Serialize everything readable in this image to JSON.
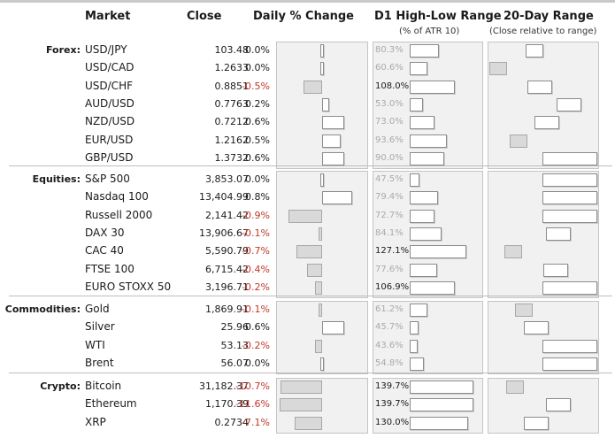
{
  "headers": {
    "market": "Market",
    "close": "Close",
    "daily_change": "Daily % Change",
    "d1_range": "D1 High-Low Range",
    "d1_range_sub": "(% of ATR 10)",
    "twenty_day": "20-Day Range",
    "twenty_day_sub": "(Close relative to range)"
  },
  "colors": {
    "negative": "#c0392b",
    "neutral": "#1a1a1a",
    "faded": "#aaaaaa",
    "positive_bar": "#ffffff",
    "negative_bar": "#d9d9d9"
  },
  "groups": [
    {
      "label": "Forex:",
      "rows": [
        {
          "name": "USD/JPY",
          "close": "103.48",
          "change": "0.0%",
          "change_value": 0.0,
          "atr": "80.3%",
          "atr_value": 80.3,
          "range_pos": 0.5
        },
        {
          "name": "USD/CAD",
          "close": "1.2633",
          "change": "0.0%",
          "change_value": 0.0,
          "atr": "60.6%",
          "atr_value": 60.6,
          "range_pos": 0.03
        },
        {
          "name": "USD/CHF",
          "close": "0.8851",
          "change": "-0.5%",
          "change_value": -0.5,
          "atr": "108.0%",
          "atr_value": 108.0,
          "range_pos": 0.58
        },
        {
          "name": "AUD/USD",
          "close": "0.7763",
          "change": "0.2%",
          "change_value": 0.2,
          "atr": "53.0%",
          "atr_value": 53.0,
          "range_pos": 0.85
        },
        {
          "name": "NZD/USD",
          "close": "0.7212",
          "change": "0.6%",
          "change_value": 0.6,
          "atr": "73.0%",
          "atr_value": 73.0,
          "range_pos": 0.65
        },
        {
          "name": "EUR/USD",
          "close": "1.2162",
          "change": "0.5%",
          "change_value": 0.5,
          "atr": "93.6%",
          "atr_value": 93.6,
          "range_pos": 0.35
        },
        {
          "name": "GBP/USD",
          "close": "1.3732",
          "change": "0.6%",
          "change_value": 0.6,
          "atr": "90.0%",
          "atr_value": 90.0,
          "range_pos": 1.0
        }
      ]
    },
    {
      "label": "Equities:",
      "rows": [
        {
          "name": "S&P 500",
          "close": "3,853.07",
          "change": "0.0%",
          "change_value": 0.0,
          "atr": "47.5%",
          "atr_value": 47.5,
          "range_pos": 1.0
        },
        {
          "name": "Nasdaq 100",
          "close": "13,404.99",
          "change": "0.8%",
          "change_value": 0.8,
          "atr": "79.4%",
          "atr_value": 79.4,
          "range_pos": 1.0
        },
        {
          "name": "Russell 2000",
          "close": "2,141.42",
          "change": "-0.9%",
          "change_value": -0.9,
          "atr": "72.7%",
          "atr_value": 72.7,
          "range_pos": 1.0
        },
        {
          "name": "DAX 30",
          "close": "13,906.67",
          "change": "-0.1%",
          "change_value": -0.1,
          "atr": "84.1%",
          "atr_value": 84.1,
          "range_pos": 0.75
        },
        {
          "name": "CAC 40",
          "close": "5,590.79",
          "change": "-0.7%",
          "change_value": -0.7,
          "atr": "127.1%",
          "atr_value": 127.1,
          "range_pos": 0.3
        },
        {
          "name": "FTSE 100",
          "close": "6,715.42",
          "change": "-0.4%",
          "change_value": -0.4,
          "atr": "77.6%",
          "atr_value": 77.6,
          "range_pos": 0.73
        },
        {
          "name": "EURO STOXX 50",
          "close": "3,196.71",
          "change": "-0.2%",
          "change_value": -0.2,
          "atr": "106.9%",
          "atr_value": 106.9,
          "range_pos": 1.0
        }
      ]
    },
    {
      "label": "Commodities:",
      "rows": [
        {
          "name": "Gold",
          "close": "1,869.91",
          "change": "-0.1%",
          "change_value": -0.1,
          "atr": "61.2%",
          "atr_value": 61.2,
          "range_pos": 0.4
        },
        {
          "name": "Silver",
          "close": "25.96",
          "change": "0.6%",
          "change_value": 0.6,
          "atr": "45.7%",
          "atr_value": 45.7,
          "range_pos": 0.55
        },
        {
          "name": "WTI",
          "close": "53.13",
          "change": "-0.2%",
          "change_value": -0.2,
          "atr": "43.6%",
          "atr_value": 43.6,
          "range_pos": 1.0
        },
        {
          "name": "Brent",
          "close": "56.07",
          "change": "0.0%",
          "change_value": 0.0,
          "atr": "54.8%",
          "atr_value": 54.8,
          "range_pos": 1.0
        }
      ]
    },
    {
      "label": "Crypto:",
      "rows": [
        {
          "name": "Bitcoin",
          "close": "31,182.37",
          "change": "-10.7%",
          "change_value": -10.7,
          "atr": "139.7%",
          "atr_value": 139.7,
          "range_pos": 0.32
        },
        {
          "name": "Ethereum",
          "close": "1,170.39",
          "change": "-11.6%",
          "change_value": -11.6,
          "atr": "139.7%",
          "atr_value": 139.7,
          "range_pos": 0.75
        },
        {
          "name": "XRP",
          "close": "0.2734",
          "change": "-7.1%",
          "change_value": -7.1,
          "atr": "130.0%",
          "atr_value": 130.0,
          "range_pos": 0.55
        }
      ]
    }
  ]
}
